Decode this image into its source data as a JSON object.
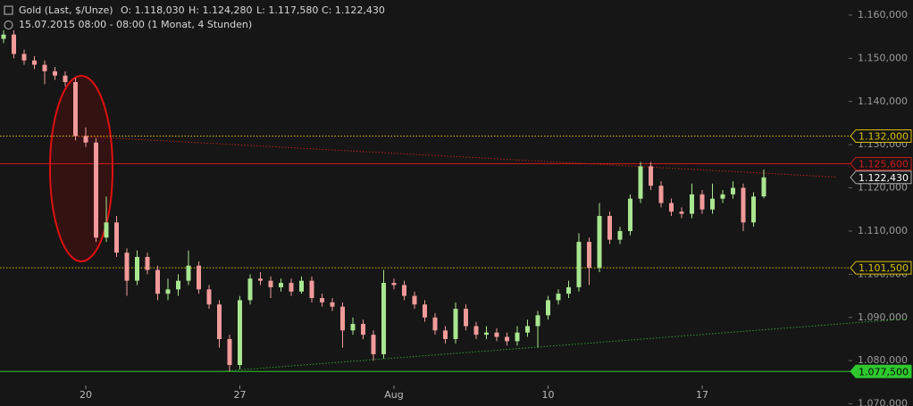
{
  "header": {
    "title": "Gold (Last, $/Unze)",
    "ohlc": [
      "O: 1.118,030",
      "H: 1.124,280",
      "L: 1.117,580",
      "C: 1.122,430"
    ],
    "date": "15.07.2015 08:00 - 08:00 (1 Monat, 4 Stunden)"
  },
  "chart_data": {
    "type": "candlestick",
    "categories": [
      null,
      null,
      null,
      null,
      null,
      null,
      null,
      null,
      "20",
      null,
      null,
      null,
      null,
      null,
      null,
      null,
      null,
      null,
      null,
      null,
      null,
      null,
      null,
      "27",
      null,
      null,
      null,
      null,
      null,
      null,
      null,
      null,
      null,
      null,
      null,
      null,
      null,
      null,
      "Aug",
      null,
      null,
      null,
      null,
      null,
      null,
      null,
      null,
      null,
      null,
      null,
      null,
      null,
      null,
      "10",
      null,
      null,
      null,
      null,
      null,
      null,
      null,
      null,
      null,
      null,
      null,
      null,
      null,
      null,
      "17",
      null,
      null,
      null,
      null,
      null,
      null
    ],
    "open": [
      1.1545,
      1.1555,
      1.151,
      1.1495,
      1.1485,
      1.147,
      1.146,
      1.1445,
      1.132,
      1.1305,
      1.1085,
      1.112,
      1.105,
      1.0985,
      1.104,
      1.101,
      1.0955,
      1.0965,
      1.0985,
      1.102,
      1.0965,
      1.093,
      1.085,
      1.079,
      1.094,
      1.099,
      1.0985,
      1.097,
      1.098,
      1.096,
      1.0985,
      1.0945,
      1.0935,
      1.0925,
      1.087,
      1.0885,
      1.086,
      1.0815,
      1.098,
      1.0975,
      1.095,
      1.093,
      1.09,
      1.087,
      1.085,
      1.092,
      1.088,
      1.086,
      1.0865,
      1.0855,
      1.0845,
      1.0865,
      1.088,
      1.0905,
      1.094,
      1.0955,
      1.097,
      1.1075,
      1.1015,
      1.1135,
      1.108,
      1.11,
      1.1175,
      1.125,
      1.1205,
      1.1165,
      1.1145,
      1.114,
      1.1185,
      1.115,
      1.1175,
      1.1185,
      1.12,
      1.112,
      1.11803
    ],
    "high": [
      1.1565,
      1.1565,
      1.152,
      1.1505,
      1.1495,
      1.148,
      1.147,
      1.1455,
      1.134,
      1.1315,
      1.118,
      1.1135,
      1.106,
      1.1055,
      1.105,
      1.102,
      1.099,
      1.1,
      1.1055,
      1.103,
      1.0975,
      1.094,
      1.086,
      1.095,
      1.1,
      1.1005,
      1.0995,
      1.099,
      1.099,
      1.0995,
      1.0995,
      1.0955,
      1.0945,
      1.0935,
      1.09,
      1.0895,
      1.087,
      1.101,
      1.099,
      1.0985,
      1.096,
      1.094,
      1.091,
      1.088,
      1.0935,
      1.093,
      1.089,
      1.088,
      1.0875,
      1.0865,
      1.088,
      1.0895,
      1.0915,
      1.095,
      1.0965,
      1.0985,
      1.1095,
      1.1085,
      1.1165,
      1.1145,
      1.111,
      1.1185,
      1.126,
      1.126,
      1.1215,
      1.1175,
      1.1155,
      1.121,
      1.1195,
      1.121,
      1.1195,
      1.1215,
      1.121,
      1.119,
      1.12428
    ],
    "low": [
      1.1535,
      1.15,
      1.1485,
      1.1475,
      1.144,
      1.145,
      1.1435,
      1.131,
      1.1295,
      1.1075,
      1.1075,
      1.104,
      1.095,
      1.0975,
      1.1,
      1.094,
      1.094,
      1.095,
      1.0975,
      1.0955,
      1.092,
      1.083,
      1.0775,
      1.078,
      1.093,
      1.0975,
      1.0945,
      1.096,
      1.095,
      1.0955,
      1.0935,
      1.0925,
      1.0915,
      1.083,
      1.086,
      1.085,
      1.08,
      1.0805,
      1.0965,
      1.094,
      1.092,
      1.089,
      1.086,
      1.084,
      1.084,
      1.087,
      1.085,
      1.085,
      1.0845,
      1.0835,
      1.0835,
      1.0855,
      1.083,
      1.0895,
      1.093,
      1.0945,
      1.096,
      1.0975,
      1.1005,
      1.107,
      1.107,
      1.109,
      1.1165,
      1.1195,
      1.1155,
      1.1135,
      1.113,
      1.113,
      1.114,
      1.114,
      1.1165,
      1.1175,
      1.11,
      1.111,
      1.11758
    ],
    "close": [
      1.1555,
      1.151,
      1.1495,
      1.1485,
      1.147,
      1.146,
      1.1445,
      1.132,
      1.1305,
      1.1085,
      1.112,
      1.105,
      1.0985,
      1.104,
      1.101,
      1.0955,
      1.0965,
      1.0985,
      1.102,
      1.0965,
      1.093,
      1.085,
      1.079,
      1.094,
      1.099,
      1.0985,
      1.097,
      1.098,
      1.096,
      1.0985,
      1.0945,
      1.0935,
      1.0925,
      1.087,
      1.0885,
      1.086,
      1.0815,
      1.098,
      1.0975,
      1.095,
      1.093,
      1.09,
      1.087,
      1.085,
      1.092,
      1.088,
      1.086,
      1.0865,
      1.0855,
      1.0845,
      1.0865,
      1.088,
      1.0905,
      1.094,
      1.0955,
      1.097,
      1.1075,
      1.1015,
      1.1135,
      1.108,
      1.11,
      1.1175,
      1.125,
      1.1205,
      1.1165,
      1.1145,
      1.114,
      1.1185,
      1.115,
      1.1175,
      1.1185,
      1.12,
      1.112,
      1.118,
      1.12243
    ],
    "up_color": "#a8e690",
    "down_color": "#f29a9a",
    "ylim": [
      1.0695,
      1.1635
    ],
    "yticks": [
      {
        "value": 1.07,
        "label": "1.070,000"
      },
      {
        "value": 1.08,
        "label": "1.080,000"
      },
      {
        "value": 1.09,
        "label": "1.090,000"
      },
      {
        "value": 1.1,
        "label": "1.100,000"
      },
      {
        "value": 1.11,
        "label": "1.110,000"
      },
      {
        "value": 1.12,
        "label": "1.120,000"
      },
      {
        "value": 1.13,
        "label": "1.130,000"
      },
      {
        "value": 1.14,
        "label": "1.140,000"
      },
      {
        "value": 1.15,
        "label": "1.150,000"
      },
      {
        "value": 1.16,
        "label": "1.160,000"
      }
    ],
    "levels": [
      {
        "value": 1.132,
        "label": "1.132,000",
        "color": "#d4c000",
        "style": "dotted"
      },
      {
        "value": 1.1256,
        "label": "1.125,600",
        "color": "#d01818",
        "style": "solid"
      },
      {
        "value": 1.1015,
        "label": "1.101,500",
        "color": "#d4c000",
        "style": "dotted"
      },
      {
        "value": 1.0775,
        "label": "1.077,500",
        "color": "#2ec82e",
        "style": "solid"
      }
    ],
    "last_price": {
      "value": 1.12243,
      "label": "1.122,430"
    },
    "trendlines": [
      {
        "color": "#c02020",
        "points": [
          [
            7,
            1.132
          ],
          [
            81,
            1.1225
          ]
        ]
      },
      {
        "color": "#2aa02a",
        "points": [
          [
            21,
            1.0775
          ],
          [
            88,
            1.0897
          ]
        ]
      }
    ]
  }
}
